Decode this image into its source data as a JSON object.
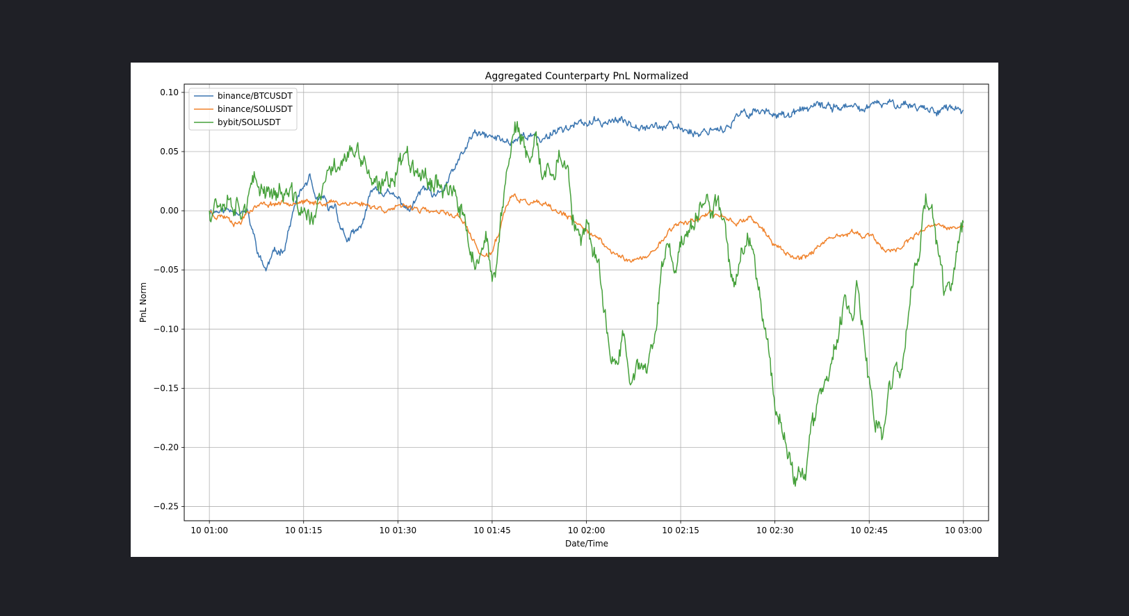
{
  "chart_data": {
    "type": "line",
    "title": "Aggregated Counterparty PnL Normalized",
    "xlabel": "Date/Time",
    "ylabel": "PnL Norm",
    "xlim": [
      "10 00:56",
      "10 03:04"
    ],
    "ylim": [
      -0.262,
      0.107
    ],
    "grid": true,
    "legend": "top-left",
    "x_ticks": [
      {
        "t": "10 01:00",
        "label": "10 01:00"
      },
      {
        "t": "10 01:15",
        "label": "10 01:15"
      },
      {
        "t": "10 01:30",
        "label": "10 01:30"
      },
      {
        "t": "10 01:45",
        "label": "10 01:45"
      },
      {
        "t": "10 02:00",
        "label": "10 02:00"
      },
      {
        "t": "10 02:15",
        "label": "10 02:15"
      },
      {
        "t": "10 02:30",
        "label": "10 02:30"
      },
      {
        "t": "10 02:45",
        "label": "10 02:45"
      },
      {
        "t": "10 03:00",
        "label": "10 03:00"
      }
    ],
    "y_ticks": [
      {
        "v": 0.1,
        "label": "0.10"
      },
      {
        "v": 0.05,
        "label": "0.05"
      },
      {
        "v": 0.0,
        "label": "0.00"
      },
      {
        "v": -0.05,
        "label": "−0.05"
      },
      {
        "v": -0.1,
        "label": "−0.10"
      },
      {
        "v": -0.15,
        "label": "−0.15"
      },
      {
        "v": -0.2,
        "label": "−0.20"
      },
      {
        "v": -0.25,
        "label": "−0.25"
      }
    ],
    "series": [
      {
        "name": "binance/BTCUSDT",
        "color": "#3a75b0",
        "noise": 0.003,
        "seed": 11,
        "points": [
          [
            "10 01:00",
            0.0
          ],
          [
            "10 01:02",
            0.0
          ],
          [
            "10 01:04",
            0.001
          ],
          [
            "10 01:06",
            -0.002
          ],
          [
            "10 01:07",
            -0.02
          ],
          [
            "10 01:08",
            -0.04
          ],
          [
            "10 01:09",
            -0.05
          ],
          [
            "10 01:10",
            -0.038
          ],
          [
            "10 01:12",
            -0.03
          ],
          [
            "10 01:13",
            -0.008
          ],
          [
            "10 01:14",
            0.01
          ],
          [
            "10 01:15",
            0.02
          ],
          [
            "10 01:16",
            0.028
          ],
          [
            "10 01:17",
            0.005
          ],
          [
            "10 01:18",
            0.012
          ],
          [
            "10 01:19",
            0.0
          ],
          [
            "10 01:20",
            0.005
          ],
          [
            "10 01:21",
            -0.015
          ],
          [
            "10 01:22",
            -0.025
          ],
          [
            "10 01:23",
            -0.02
          ],
          [
            "10 01:24",
            -0.015
          ],
          [
            "10 01:25",
            0.0
          ],
          [
            "10 01:26",
            0.02
          ],
          [
            "10 01:28",
            0.015
          ],
          [
            "10 01:30",
            0.01
          ],
          [
            "10 01:32",
            0.0
          ],
          [
            "10 01:34",
            0.02
          ],
          [
            "10 01:36",
            0.01
          ],
          [
            "10 01:38",
            0.025
          ],
          [
            "10 01:40",
            0.045
          ],
          [
            "10 01:41",
            0.055
          ],
          [
            "10 01:42",
            0.065
          ],
          [
            "10 01:45",
            0.062
          ],
          [
            "10 01:48",
            0.058
          ],
          [
            "10 01:50",
            0.065
          ],
          [
            "10 01:53",
            0.06
          ],
          [
            "10 01:55",
            0.068
          ],
          [
            "10 01:58",
            0.072
          ],
          [
            "10 02:00",
            0.074
          ],
          [
            "10 02:05",
            0.076
          ],
          [
            "10 02:10",
            0.072
          ],
          [
            "10 02:15",
            0.07
          ],
          [
            "10 02:18",
            0.065
          ],
          [
            "10 02:20",
            0.07
          ],
          [
            "10 02:23",
            0.07
          ],
          [
            "10 02:24",
            0.08
          ],
          [
            "10 02:27",
            0.085
          ],
          [
            "10 02:29",
            0.083
          ],
          [
            "10 02:31",
            0.083
          ],
          [
            "10 02:32",
            0.078
          ],
          [
            "10 02:34",
            0.085
          ],
          [
            "10 02:37",
            0.088
          ],
          [
            "10 02:40",
            0.088
          ],
          [
            "10 02:44",
            0.086
          ],
          [
            "10 02:45",
            0.088
          ],
          [
            "10 02:47",
            0.09
          ],
          [
            "10 02:50",
            0.091
          ],
          [
            "10 02:53",
            0.088
          ],
          [
            "10 02:55",
            0.085
          ],
          [
            "10 02:57",
            0.087
          ],
          [
            "10 03:00",
            0.085
          ]
        ]
      },
      {
        "name": "binance/SOLUSDT",
        "color": "#f0822b",
        "noise": 0.002,
        "seed": 23,
        "points": [
          [
            "10 01:00",
            0.0
          ],
          [
            "10 01:01",
            -0.004
          ],
          [
            "10 01:03",
            -0.005
          ],
          [
            "10 01:04",
            -0.01
          ],
          [
            "10 01:05",
            -0.01
          ],
          [
            "10 01:06",
            0.0
          ],
          [
            "10 01:08",
            0.005
          ],
          [
            "10 01:10",
            0.006
          ],
          [
            "10 01:12",
            0.007
          ],
          [
            "10 01:14",
            0.008
          ],
          [
            "10 01:16",
            0.006
          ],
          [
            "10 01:18",
            0.007
          ],
          [
            "10 01:20",
            0.007
          ],
          [
            "10 01:24",
            0.006
          ],
          [
            "10 01:26",
            0.004
          ],
          [
            "10 01:28",
            0.001
          ],
          [
            "10 01:30",
            0.002
          ],
          [
            "10 01:32",
            0.004
          ],
          [
            "10 01:34",
            0.0
          ],
          [
            "10 01:38",
            -0.003
          ],
          [
            "10 01:40",
            -0.005
          ],
          [
            "10 01:42",
            -0.025
          ],
          [
            "10 01:43",
            -0.035
          ],
          [
            "10 01:44",
            -0.04
          ],
          [
            "10 01:45",
            -0.035
          ],
          [
            "10 01:46",
            -0.02
          ],
          [
            "10 01:47",
            0.0
          ],
          [
            "10 01:48",
            0.012
          ],
          [
            "10 01:50",
            0.008
          ],
          [
            "10 01:53",
            0.005
          ],
          [
            "10 01:55",
            0.0
          ],
          [
            "10 01:57",
            -0.005
          ],
          [
            "10 01:58",
            -0.01
          ],
          [
            "10 02:00",
            -0.015
          ],
          [
            "10 02:02",
            -0.025
          ],
          [
            "10 02:04",
            -0.035
          ],
          [
            "10 02:06",
            -0.04
          ],
          [
            "10 02:08",
            -0.042
          ],
          [
            "10 02:10",
            -0.038
          ],
          [
            "10 02:12",
            -0.025
          ],
          [
            "10 02:14",
            -0.012
          ],
          [
            "10 02:17",
            -0.008
          ],
          [
            "10 02:19",
            -0.004
          ],
          [
            "10 02:20",
            -0.003
          ],
          [
            "10 02:22",
            -0.005
          ],
          [
            "10 02:24",
            -0.01
          ],
          [
            "10 02:26",
            -0.005
          ],
          [
            "10 02:28",
            -0.015
          ],
          [
            "10 02:30",
            -0.03
          ],
          [
            "10 02:32",
            -0.035
          ],
          [
            "10 02:33",
            -0.04
          ],
          [
            "10 02:35",
            -0.038
          ],
          [
            "10 02:37",
            -0.03
          ],
          [
            "10 02:40",
            -0.022
          ],
          [
            "10 02:43",
            -0.018
          ],
          [
            "10 02:45",
            -0.022
          ],
          [
            "10 02:46",
            -0.025
          ],
          [
            "10 02:48",
            -0.035
          ],
          [
            "10 02:50",
            -0.03
          ],
          [
            "10 02:53",
            -0.02
          ],
          [
            "10 02:55",
            -0.012
          ],
          [
            "10 02:58",
            -0.015
          ],
          [
            "10 03:00",
            -0.013
          ]
        ]
      },
      {
        "name": "bybit/SOLUSDT",
        "color": "#45a03a",
        "noise": 0.008,
        "seed": 37,
        "points": [
          [
            "10 01:00",
            0.0
          ],
          [
            "10 01:01",
            0.01
          ],
          [
            "10 01:03",
            0.012
          ],
          [
            "10 01:05",
            0.005
          ],
          [
            "10 01:06",
            0.01
          ],
          [
            "10 01:07",
            0.02
          ],
          [
            "10 01:09",
            0.02
          ],
          [
            "10 01:11",
            0.015
          ],
          [
            "10 01:13",
            0.012
          ],
          [
            "10 01:14",
            0.005
          ],
          [
            "10 01:15",
            0.0
          ],
          [
            "10 01:16",
            -0.01
          ],
          [
            "10 01:17",
            0.0
          ],
          [
            "10 01:18",
            0.015
          ],
          [
            "10 01:19",
            0.03
          ],
          [
            "10 01:21",
            0.045
          ],
          [
            "10 01:23",
            0.048
          ],
          [
            "10 01:25",
            0.04
          ],
          [
            "10 01:26",
            0.02
          ],
          [
            "10 01:27",
            0.015
          ],
          [
            "10 01:29",
            0.03
          ],
          [
            "10 01:31",
            0.048
          ],
          [
            "10 01:33",
            0.04
          ],
          [
            "10 01:34",
            0.03
          ],
          [
            "10 01:36",
            0.025
          ],
          [
            "10 01:38",
            0.02
          ],
          [
            "10 01:40",
            0.0
          ],
          [
            "10 01:41",
            -0.02
          ],
          [
            "10 01:42",
            -0.04
          ],
          [
            "10 01:43",
            -0.045
          ],
          [
            "10 01:44",
            -0.03
          ],
          [
            "10 01:45",
            -0.06
          ],
          [
            "10 01:46",
            -0.03
          ],
          [
            "10 01:47",
            0.02
          ],
          [
            "10 01:48",
            0.06
          ],
          [
            "10 01:49",
            0.07
          ],
          [
            "10 01:50",
            0.05
          ],
          [
            "10 01:51",
            0.04
          ],
          [
            "10 01:52",
            0.055
          ],
          [
            "10 01:53",
            0.03
          ],
          [
            "10 01:54",
            0.035
          ],
          [
            "10 01:55",
            0.04
          ],
          [
            "10 01:56",
            0.05
          ],
          [
            "10 01:57",
            0.03
          ],
          [
            "10 01:58",
            -0.01
          ],
          [
            "10 01:59",
            -0.03
          ],
          [
            "10 02:00",
            -0.02
          ],
          [
            "10 02:01",
            -0.03
          ],
          [
            "10 02:02",
            -0.05
          ],
          [
            "10 02:03",
            -0.09
          ],
          [
            "10 02:04",
            -0.12
          ],
          [
            "10 02:05",
            -0.13
          ],
          [
            "10 02:06",
            -0.1
          ],
          [
            "10 02:07",
            -0.14
          ],
          [
            "10 02:08",
            -0.125
          ],
          [
            "10 02:09",
            -0.14
          ],
          [
            "10 02:10",
            -0.13
          ],
          [
            "10 02:11",
            -0.1
          ],
          [
            "10 02:12",
            -0.05
          ],
          [
            "10 02:13",
            -0.03
          ],
          [
            "10 02:14",
            -0.05
          ],
          [
            "10 02:15",
            -0.03
          ],
          [
            "10 02:16",
            -0.02
          ],
          [
            "10 02:17",
            -0.01
          ],
          [
            "10 02:18",
            0.0
          ],
          [
            "10 02:19",
            0.005
          ],
          [
            "10 02:20",
            0.0
          ],
          [
            "10 02:21",
            0.008
          ],
          [
            "10 02:22",
            -0.01
          ],
          [
            "10 02:23",
            -0.05
          ],
          [
            "10 02:24",
            -0.06
          ],
          [
            "10 02:25",
            -0.03
          ],
          [
            "10 02:26",
            -0.02
          ],
          [
            "10 02:27",
            -0.05
          ],
          [
            "10 02:28",
            -0.08
          ],
          [
            "10 02:29",
            -0.12
          ],
          [
            "10 02:30",
            -0.16
          ],
          [
            "10 02:31",
            -0.18
          ],
          [
            "10 02:32",
            -0.2
          ],
          [
            "10 02:33",
            -0.23
          ],
          [
            "10 02:34",
            -0.215
          ],
          [
            "10 02:35",
            -0.22
          ],
          [
            "10 02:36",
            -0.18
          ],
          [
            "10 02:37",
            -0.16
          ],
          [
            "10 02:38",
            -0.15
          ],
          [
            "10 02:39",
            -0.13
          ],
          [
            "10 02:40",
            -0.11
          ],
          [
            "10 02:41",
            -0.08
          ],
          [
            "10 02:42",
            -0.09
          ],
          [
            "10 02:43",
            -0.07
          ],
          [
            "10 02:44",
            -0.1
          ],
          [
            "10 02:45",
            -0.15
          ],
          [
            "10 02:46",
            -0.18
          ],
          [
            "10 02:47",
            -0.195
          ],
          [
            "10 02:48",
            -0.16
          ],
          [
            "10 02:49",
            -0.13
          ],
          [
            "10 02:50",
            -0.14
          ],
          [
            "10 02:51",
            -0.1
          ],
          [
            "10 02:52",
            -0.06
          ],
          [
            "10 02:53",
            -0.03
          ],
          [
            "10 02:54",
            0.01
          ],
          [
            "10 02:55",
            0.0
          ],
          [
            "10 02:56",
            -0.04
          ],
          [
            "10 02:57",
            -0.07
          ],
          [
            "10 02:58",
            -0.06
          ],
          [
            "10 02:59",
            -0.03
          ],
          [
            "10 03:00",
            -0.01
          ]
        ]
      }
    ]
  }
}
